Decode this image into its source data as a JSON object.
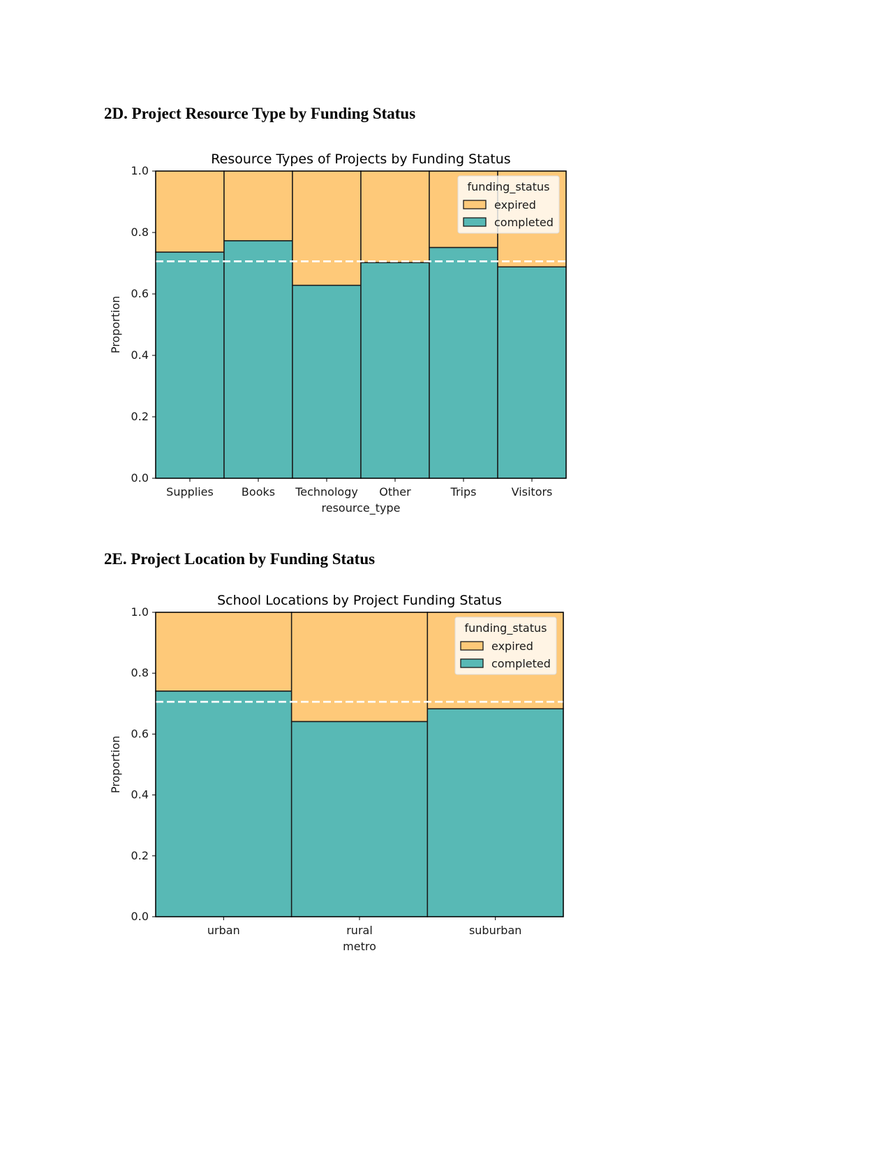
{
  "sections": [
    {
      "heading": "2D. Project Resource Type by Funding Status",
      "chart_data": {
        "type": "bar",
        "stacked": true,
        "normalized": true,
        "title": "Resource Types of Projects by Funding Status",
        "xlabel": "resource_type",
        "ylabel": "Proportion",
        "ylim": [
          0,
          1
        ],
        "yticks": [
          "0.0",
          "0.2",
          "0.4",
          "0.6",
          "0.8",
          "1.0"
        ],
        "categories": [
          "Supplies",
          "Books",
          "Technology",
          "Other",
          "Trips",
          "Visitors"
        ],
        "series": [
          {
            "name": "completed",
            "values": [
              0.736,
              0.773,
              0.628,
              0.702,
              0.751,
              0.688
            ]
          },
          {
            "name": "expired",
            "values": [
              0.264,
              0.227,
              0.372,
              0.298,
              0.249,
              0.312
            ]
          }
        ],
        "reference_line": {
          "y": 0.706,
          "style": "dashed",
          "color": "#ffffff"
        },
        "legend": {
          "title": "funding_status",
          "placement": "upper right",
          "entries": [
            {
              "label": "expired",
              "color": "#fec979"
            },
            {
              "label": "completed",
              "color": "#58b9b5"
            }
          ]
        },
        "colors": {
          "completed": "#58b9b5",
          "expired": "#fec979"
        },
        "grid": false
      }
    },
    {
      "heading": "2E. Project Location by Funding Status",
      "chart_data": {
        "type": "bar",
        "stacked": true,
        "normalized": true,
        "title": "School Locations by Project Funding Status",
        "xlabel": "metro",
        "ylabel": "Proportion",
        "ylim": [
          0,
          1
        ],
        "yticks": [
          "0.0",
          "0.2",
          "0.4",
          "0.6",
          "0.8",
          "1.0"
        ],
        "categories": [
          "urban",
          "rural",
          "suburban"
        ],
        "series": [
          {
            "name": "completed",
            "values": [
              0.741,
              0.641,
              0.683
            ]
          },
          {
            "name": "expired",
            "values": [
              0.259,
              0.359,
              0.317
            ]
          }
        ],
        "reference_line": {
          "y": 0.706,
          "style": "dashed",
          "color": "#ffffff"
        },
        "legend": {
          "title": "funding_status",
          "placement": "upper right",
          "entries": [
            {
              "label": "expired",
              "color": "#fec979"
            },
            {
              "label": "completed",
              "color": "#58b9b5"
            }
          ]
        },
        "colors": {
          "completed": "#58b9b5",
          "expired": "#fec979"
        },
        "grid": false
      }
    }
  ]
}
